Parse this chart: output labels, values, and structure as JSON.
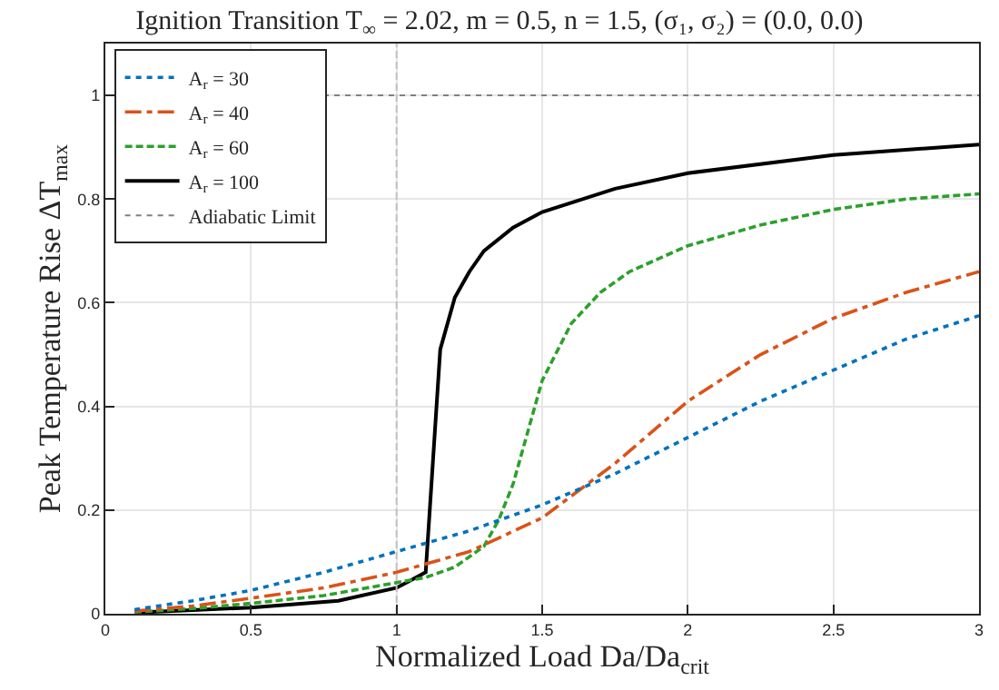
{
  "chart_data": {
    "type": "line",
    "title": "Ignition Transition T$_{∞}$ = 2.02, m = 0.5, n = 1.5, (σ₁, σ₂) = (0.0, 0.0)",
    "xlabel": "Normalized Load Da/Da$_{crit}$",
    "ylabel": "Peak Temperature Rise ΔT$_{max}$",
    "xlim": [
      0,
      3
    ],
    "xticks": [
      0,
      0.5,
      1,
      1.5,
      2,
      2.5,
      3
    ],
    "ylim": [
      0,
      1.1
    ],
    "yticks": [
      0,
      0.2,
      0.4,
      0.6,
      0.8,
      1
    ],
    "grid": true,
    "legend": "top left",
    "marker": "none",
    "series": [
      {
        "name": "A$_{r}$ = 30",
        "color": "#0072bd",
        "line_style": "dotted",
        "x": [
          0.1,
          0.3,
          0.5,
          0.75,
          1.0,
          1.25,
          1.5,
          1.75,
          2.0,
          2.25,
          2.5,
          2.75,
          3.0
        ],
        "values": [
          0.008,
          0.025,
          0.045,
          0.08,
          0.12,
          0.16,
          0.21,
          0.27,
          0.34,
          0.41,
          0.47,
          0.53,
          0.575
        ]
      },
      {
        "name": "A$_{r}$ = 40",
        "color": "#d95319",
        "line_style": "dashdot",
        "x": [
          0.1,
          0.3,
          0.5,
          0.75,
          1.0,
          1.25,
          1.5,
          1.75,
          2.0,
          2.25,
          2.5,
          2.75,
          3.0
        ],
        "values": [
          0.005,
          0.015,
          0.03,
          0.05,
          0.08,
          0.12,
          0.185,
          0.29,
          0.41,
          0.5,
          0.57,
          0.62,
          0.66
        ]
      },
      {
        "name": "A$_{r}$ = 60",
        "color": "#2ca02c",
        "line_style": "dashed",
        "x": [
          0.1,
          0.3,
          0.5,
          0.75,
          1.0,
          1.1,
          1.2,
          1.3,
          1.35,
          1.4,
          1.45,
          1.5,
          1.6,
          1.7,
          1.8,
          2.0,
          2.25,
          2.5,
          2.75,
          3.0
        ],
        "values": [
          0.003,
          0.01,
          0.02,
          0.035,
          0.06,
          0.07,
          0.09,
          0.13,
          0.18,
          0.25,
          0.35,
          0.45,
          0.56,
          0.62,
          0.66,
          0.71,
          0.75,
          0.78,
          0.8,
          0.81
        ]
      },
      {
        "name": "A$_{r}$ = 100",
        "color": "#000000",
        "line_style": "solid",
        "x": [
          0.1,
          0.3,
          0.5,
          0.8,
          1.0,
          1.05,
          1.1,
          1.15,
          1.2,
          1.25,
          1.3,
          1.4,
          1.5,
          1.75,
          2.0,
          2.5,
          3.0
        ],
        "values": [
          0.002,
          0.007,
          0.012,
          0.025,
          0.05,
          0.065,
          0.08,
          0.51,
          0.61,
          0.66,
          0.7,
          0.745,
          0.775,
          0.82,
          0.85,
          0.885,
          0.905
        ]
      }
    ],
    "ref_lines": [
      {
        "axis": "y",
        "value": 1,
        "label": "Adiabatic Limit",
        "color": "#808080",
        "line_style": "dotted"
      },
      {
        "axis": "x",
        "value": 1,
        "color": "#c0c0c0",
        "line_style": "dashed"
      }
    ]
  }
}
